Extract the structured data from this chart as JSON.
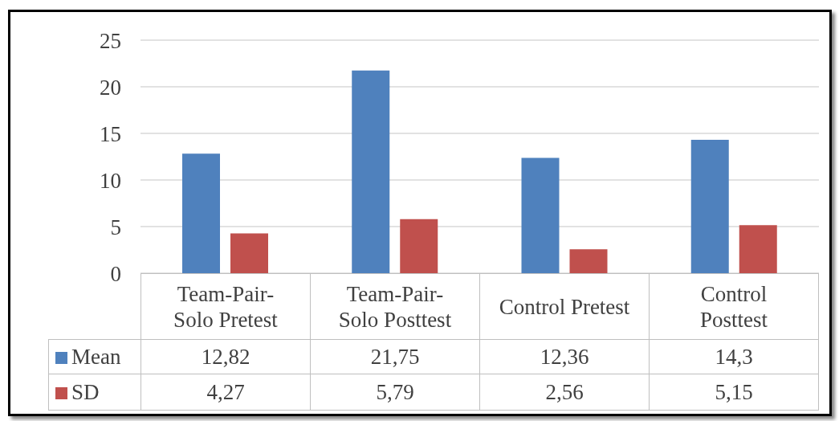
{
  "chart_data": {
    "type": "bar",
    "categories": [
      "Team-Pair-Solo Pretest",
      "Team-Pair-Solo Posttest",
      "Control Pretest",
      "Control Posttest"
    ],
    "series": [
      {
        "name": "Mean",
        "color": "#4f81bd",
        "values": [
          12.82,
          21.75,
          12.36,
          14.3
        ],
        "value_labels": [
          "12,82",
          "21,75",
          "12,36",
          "14,3"
        ]
      },
      {
        "name": "SD",
        "color": "#c0504d",
        "values": [
          4.27,
          5.79,
          2.56,
          5.15
        ],
        "value_labels": [
          "4,27",
          "5,79",
          "2,56",
          "5,15"
        ]
      }
    ],
    "ylim": [
      0,
      25
    ],
    "yticks": [
      0,
      5,
      10,
      15,
      20,
      25
    ],
    "grid": "y",
    "legend": "bottom"
  }
}
